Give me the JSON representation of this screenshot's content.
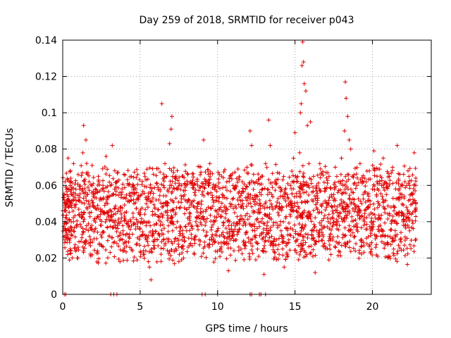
{
  "chart_data": {
    "type": "scatter",
    "title": "Day 259 of 2018, SRMTID for receiver p043",
    "xlabel": "GPS time / hours",
    "ylabel": "SRMTID / TECUs",
    "xlim": [
      0,
      23.8
    ],
    "ylim": [
      0,
      0.14
    ],
    "xticks": [
      0,
      5,
      10,
      15,
      20
    ],
    "xtick_labels": [
      "0",
      "5",
      "10",
      "15",
      "20"
    ],
    "yticks": [
      0,
      0.02,
      0.04,
      0.06,
      0.08,
      0.1,
      0.12,
      0.14
    ],
    "ytick_labels": [
      "0",
      "0.02",
      "0.04",
      "0.06",
      "0.08",
      "0.1",
      "0.12",
      "0.14"
    ],
    "grid": true,
    "marker": "+",
    "color": "#e00000",
    "series": [
      {
        "name": "SRMTID",
        "points": [
          [
            0.0,
            0.046
          ],
          [
            0.1,
            0.052
          ],
          [
            0.15,
            0.062
          ],
          [
            0.2,
            0.05
          ],
          [
            0.25,
            0.042
          ],
          [
            0.3,
            0.063
          ],
          [
            0.35,
            0.075
          ],
          [
            0.4,
            0.058
          ],
          [
            0.45,
            0.035
          ],
          [
            0.5,
            0.068
          ],
          [
            0.55,
            0.04
          ],
          [
            0.6,
            0.055
          ],
          [
            0.7,
            0.072
          ],
          [
            0.8,
            0.048
          ],
          [
            0.9,
            0.038
          ],
          [
            1.0,
            0.066
          ],
          [
            1.1,
            0.058
          ],
          [
            1.2,
            0.045
          ],
          [
            1.3,
            0.078
          ],
          [
            1.35,
            0.093
          ],
          [
            1.4,
            0.05
          ],
          [
            1.5,
            0.085
          ],
          [
            1.6,
            0.055
          ],
          [
            1.7,
            0.062
          ],
          [
            1.8,
            0.03
          ],
          [
            1.9,
            0.071
          ],
          [
            2.0,
            0.048
          ],
          [
            2.1,
            0.058
          ],
          [
            2.2,
            0.042
          ],
          [
            2.3,
            0.065
          ],
          [
            2.4,
            0.052
          ],
          [
            2.5,
            0.038
          ],
          [
            2.6,
            0.06
          ],
          [
            2.7,
            0.045
          ],
          [
            2.8,
            0.076
          ],
          [
            2.9,
            0.05
          ],
          [
            3.0,
            0.032
          ],
          [
            3.1,
            0.041
          ],
          [
            3.2,
            0.082
          ],
          [
            3.3,
            0.055
          ],
          [
            3.4,
            0.038
          ],
          [
            3.5,
            0.028
          ],
          [
            3.6,
            0.047
          ],
          [
            3.7,
            0.018
          ],
          [
            3.8,
            0.055
          ],
          [
            3.9,
            0.035
          ],
          [
            4.0,
            0.042
          ],
          [
            4.1,
            0.029
          ],
          [
            4.2,
            0.061
          ],
          [
            4.3,
            0.033
          ],
          [
            4.4,
            0.04
          ],
          [
            4.5,
            0.024
          ],
          [
            4.6,
            0.05
          ],
          [
            4.7,
            0.036
          ],
          [
            4.8,
            0.028
          ],
          [
            4.9,
            0.045
          ],
          [
            5.0,
            0.032
          ],
          [
            5.1,
            0.055
          ],
          [
            5.2,
            0.022
          ],
          [
            5.3,
            0.04
          ],
          [
            5.4,
            0.03
          ],
          [
            5.5,
            0.048
          ],
          [
            5.6,
            0.015
          ],
          [
            5.7,
            0.008
          ],
          [
            5.8,
            0.035
          ],
          [
            5.9,
            0.027
          ],
          [
            6.0,
            0.044
          ],
          [
            6.1,
            0.03
          ],
          [
            6.2,
            0.052
          ],
          [
            6.3,
            0.038
          ],
          [
            6.4,
            0.105
          ],
          [
            6.5,
            0.06
          ],
          [
            6.6,
            0.072
          ],
          [
            6.7,
            0.065
          ],
          [
            6.8,
            0.042
          ],
          [
            6.9,
            0.083
          ],
          [
            7.0,
            0.091
          ],
          [
            7.05,
            0.098
          ],
          [
            7.1,
            0.035
          ],
          [
            7.2,
            0.058
          ],
          [
            7.3,
            0.025
          ],
          [
            7.4,
            0.04
          ],
          [
            7.5,
            0.018
          ],
          [
            7.6,
            0.048
          ],
          [
            7.7,
            0.03
          ],
          [
            7.8,
            0.02
          ],
          [
            7.9,
            0.052
          ],
          [
            8.0,
            0.035
          ],
          [
            8.1,
            0.026
          ],
          [
            8.2,
            0.045
          ],
          [
            8.3,
            0.033
          ],
          [
            8.4,
            0.06
          ],
          [
            8.5,
            0.022
          ],
          [
            8.6,
            0.04
          ],
          [
            8.7,
            0.05
          ],
          [
            8.8,
            0.03
          ],
          [
            8.9,
            0.045
          ],
          [
            9.0,
            0.055
          ],
          [
            9.1,
            0.085
          ],
          [
            9.2,
            0.038
          ],
          [
            9.3,
            0.062
          ],
          [
            9.4,
            0.048
          ],
          [
            9.5,
            0.072
          ],
          [
            9.6,
            0.03
          ],
          [
            9.7,
            0.052
          ],
          [
            9.8,
            0.04
          ],
          [
            9.9,
            0.06
          ],
          [
            10.0,
            0.035
          ],
          [
            10.1,
            0.047
          ],
          [
            10.2,
            0.025
          ],
          [
            10.3,
            0.055
          ],
          [
            10.4,
            0.032
          ],
          [
            10.5,
            0.042
          ],
          [
            10.6,
            0.028
          ],
          [
            10.7,
            0.013
          ],
          [
            10.8,
            0.05
          ],
          [
            10.9,
            0.038
          ],
          [
            11.0,
            0.06
          ],
          [
            11.1,
            0.045
          ],
          [
            11.2,
            0.03
          ],
          [
            11.3,
            0.052
          ],
          [
            11.4,
            0.036
          ],
          [
            11.5,
            0.048
          ],
          [
            11.6,
            0.062
          ],
          [
            11.7,
            0.04
          ],
          [
            11.8,
            0.058
          ],
          [
            11.9,
            0.07
          ],
          [
            12.0,
            0.05
          ],
          [
            12.1,
            0.09
          ],
          [
            12.2,
            0.082
          ],
          [
            12.3,
            0.045
          ],
          [
            12.4,
            0.035
          ],
          [
            12.5,
            0.062
          ],
          [
            12.6,
            0.028
          ],
          [
            12.7,
            0.052
          ],
          [
            12.8,
            0.04
          ],
          [
            12.9,
            0.058
          ],
          [
            13.0,
            0.011
          ],
          [
            13.1,
            0.072
          ],
          [
            13.2,
            0.048
          ],
          [
            13.3,
            0.096
          ],
          [
            13.4,
            0.082
          ],
          [
            13.5,
            0.055
          ],
          [
            13.6,
            0.038
          ],
          [
            13.7,
            0.062
          ],
          [
            13.8,
            0.03
          ],
          [
            13.9,
            0.045
          ],
          [
            14.0,
            0.05
          ],
          [
            14.1,
            0.035
          ],
          [
            14.2,
            0.025
          ],
          [
            14.3,
            0.015
          ],
          [
            14.4,
            0.042
          ],
          [
            14.5,
            0.055
          ],
          [
            14.6,
            0.03
          ],
          [
            14.7,
            0.06
          ],
          [
            14.8,
            0.048
          ],
          [
            14.9,
            0.075
          ],
          [
            15.0,
            0.089
          ],
          [
            15.1,
            0.062
          ],
          [
            15.2,
            0.045
          ],
          [
            15.3,
            0.078
          ],
          [
            15.35,
            0.1
          ],
          [
            15.4,
            0.105
          ],
          [
            15.45,
            0.126
          ],
          [
            15.5,
            0.139
          ],
          [
            15.55,
            0.128
          ],
          [
            15.6,
            0.116
          ],
          [
            15.7,
            0.112
          ],
          [
            15.8,
            0.093
          ],
          [
            15.9,
            0.072
          ],
          [
            16.0,
            0.095
          ],
          [
            16.1,
            0.052
          ],
          [
            16.2,
            0.035
          ],
          [
            16.3,
            0.012
          ],
          [
            16.4,
            0.06
          ],
          [
            16.5,
            0.045
          ],
          [
            16.6,
            0.072
          ],
          [
            16.7,
            0.038
          ],
          [
            16.8,
            0.05
          ],
          [
            16.9,
            0.028
          ],
          [
            17.0,
            0.058
          ],
          [
            17.1,
            0.042
          ],
          [
            17.2,
            0.065
          ],
          [
            17.3,
            0.03
          ],
          [
            17.4,
            0.048
          ],
          [
            17.5,
            0.055
          ],
          [
            17.6,
            0.07
          ],
          [
            17.7,
            0.038
          ],
          [
            17.8,
            0.062
          ],
          [
            17.9,
            0.045
          ],
          [
            18.0,
            0.075
          ],
          [
            18.1,
            0.06
          ],
          [
            18.2,
            0.09
          ],
          [
            18.25,
            0.117
          ],
          [
            18.3,
            0.108
          ],
          [
            18.4,
            0.098
          ],
          [
            18.5,
            0.085
          ],
          [
            18.6,
            0.08
          ],
          [
            18.7,
            0.065
          ],
          [
            18.8,
            0.05
          ],
          [
            18.9,
            0.038
          ],
          [
            19.0,
            0.06
          ],
          [
            19.1,
            0.045
          ],
          [
            19.2,
            0.072
          ],
          [
            19.3,
            0.03
          ],
          [
            19.4,
            0.055
          ],
          [
            19.5,
            0.04
          ],
          [
            19.6,
            0.062
          ],
          [
            19.7,
            0.048
          ],
          [
            19.8,
            0.068
          ],
          [
            19.9,
            0.035
          ],
          [
            20.0,
            0.058
          ],
          [
            20.1,
            0.079
          ],
          [
            20.2,
            0.042
          ],
          [
            20.3,
            0.065
          ],
          [
            20.4,
            0.05
          ],
          [
            20.5,
            0.038
          ],
          [
            20.6,
            0.06
          ],
          [
            20.7,
            0.075
          ],
          [
            20.8,
            0.045
          ],
          [
            20.9,
            0.055
          ],
          [
            21.0,
            0.032
          ],
          [
            21.1,
            0.065
          ],
          [
            21.2,
            0.048
          ],
          [
            21.3,
            0.07
          ],
          [
            21.4,
            0.04
          ],
          [
            21.5,
            0.058
          ],
          [
            21.6,
            0.082
          ],
          [
            21.7,
            0.045
          ],
          [
            21.8,
            0.03
          ],
          [
            21.9,
            0.055
          ],
          [
            22.0,
            0.038
          ],
          [
            22.1,
            0.062
          ],
          [
            22.2,
            0.048
          ],
          [
            22.3,
            0.068
          ],
          [
            22.4,
            0.035
          ],
          [
            22.5,
            0.055
          ],
          [
            22.6,
            0.045
          ],
          [
            22.7,
            0.078
          ],
          [
            22.8,
            0.05
          ]
        ],
        "zero_points": [
          0.1,
          0.2,
          3.1,
          3.3,
          3.5,
          9.0,
          9.2,
          10.0,
          12.1,
          12.2,
          12.7,
          12.8,
          13.1
        ]
      }
    ]
  }
}
